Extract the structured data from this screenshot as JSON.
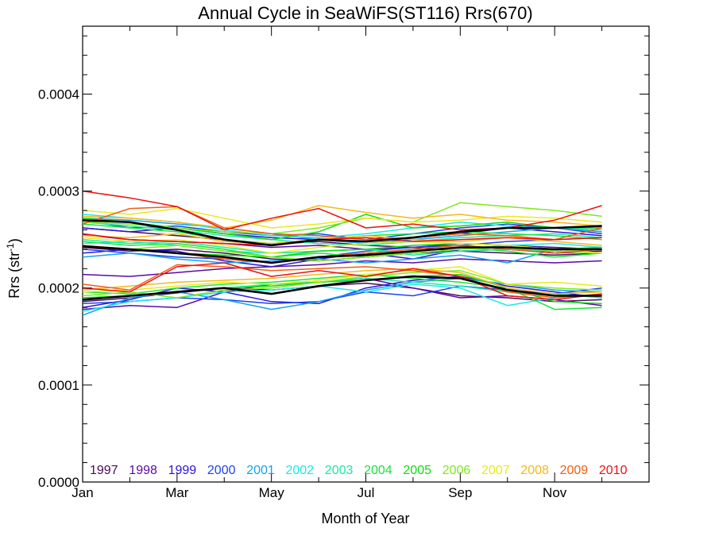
{
  "chart_data": {
    "type": "line",
    "title": "Annual Cycle in SeaWiFS(ST116) Rrs(670)",
    "xlabel": "Month of Year",
    "ylabel_main": "Rrs (str",
    "ylabel_sup": "-1",
    "ylabel_close": ")",
    "xlim": [
      1,
      13
    ],
    "ylim": [
      0,
      0.00047
    ],
    "x_ticks": [
      {
        "value": 1,
        "label": "Jan"
      },
      {
        "value": 3,
        "label": "Mar"
      },
      {
        "value": 5,
        "label": "May"
      },
      {
        "value": 7,
        "label": "Jul"
      },
      {
        "value": 9,
        "label": "Sep"
      },
      {
        "value": 11,
        "label": "Nov"
      }
    ],
    "y_ticks": [
      {
        "value": 0,
        "label": "0.0000"
      },
      {
        "value": 0.0001,
        "label": "0.0001"
      },
      {
        "value": 0.0002,
        "label": "0.0002"
      },
      {
        "value": 0.0003,
        "label": "0.0003"
      },
      {
        "value": 0.0004,
        "label": "0.0004"
      }
    ],
    "grid": false,
    "legend_position": "bottom",
    "x": [
      1,
      2,
      3,
      4,
      5,
      6,
      7,
      8,
      9,
      10,
      11,
      12
    ],
    "series": [
      {
        "name": "1997",
        "color": "#4b0a5e",
        "high": [
          0.000262,
          0.000258,
          0.000254,
          0.00025,
          0.000245,
          0.000248,
          0.000244,
          0.000242,
          0.000238,
          0.00024,
          0.000236,
          0.000238
        ],
        "mid": [
          0.000242,
          0.000238,
          0.00024,
          0.000236,
          0.00023,
          0.000228,
          0.000232,
          0.000236,
          0.000238,
          0.000236,
          0.000234,
          0.000236
        ],
        "low": [
          0.000186,
          0.00019,
          0.000195,
          0.0002,
          0.000198,
          0.000202,
          0.000205,
          0.0002,
          0.000192,
          0.00019,
          0.000186,
          0.000188
        ]
      },
      {
        "name": "1998",
        "color": "#5a0aa8",
        "high": [
          0.000255,
          0.00025,
          0.000248,
          0.000246,
          0.000242,
          0.000244,
          0.00024,
          0.000242,
          0.000246,
          0.000244,
          0.000242,
          0.00024
        ],
        "mid": [
          0.000214,
          0.000212,
          0.000216,
          0.00022,
          0.000222,
          0.000224,
          0.000228,
          0.000226,
          0.00023,
          0.000228,
          0.000226,
          0.000228
        ],
        "low": [
          0.000178,
          0.000182,
          0.00018,
          0.000196,
          0.000204,
          0.000206,
          0.00021,
          0.0002,
          0.00019,
          0.000192,
          0.000188,
          0.000182
        ]
      },
      {
        "name": "1999",
        "color": "#2a14d8",
        "high": [
          0.000262,
          0.000258,
          0.000262,
          0.000256,
          0.000252,
          0.00025,
          0.000248,
          0.000252,
          0.000256,
          0.000262,
          0.000258,
          0.000254
        ],
        "mid": [
          0.000236,
          0.00024,
          0.000238,
          0.000228,
          0.000222,
          0.00023,
          0.000236,
          0.00023,
          0.00024,
          0.000244,
          0.000236,
          0.00024
        ],
        "low": [
          0.00018,
          0.000188,
          0.0002,
          0.000196,
          0.000186,
          0.000184,
          0.0002,
          0.000208,
          0.000212,
          0.000202,
          0.000196,
          0.00019
        ]
      },
      {
        "name": "2000",
        "color": "#1c44ee",
        "high": [
          0.00027,
          0.000262,
          0.000264,
          0.000258,
          0.000254,
          0.000256,
          0.00025,
          0.000256,
          0.000262,
          0.000266,
          0.000262,
          0.000256
        ],
        "mid": [
          0.00024,
          0.000236,
          0.000232,
          0.00023,
          0.000226,
          0.000232,
          0.000238,
          0.000242,
          0.000244,
          0.000248,
          0.00025,
          0.000252
        ],
        "low": [
          0.000184,
          0.000186,
          0.00019,
          0.000188,
          0.000184,
          0.000186,
          0.000196,
          0.000192,
          0.000202,
          0.000198,
          0.000194,
          0.0002
        ]
      },
      {
        "name": "2001",
        "color": "#13a2f0",
        "high": [
          0.000272,
          0.00027,
          0.000266,
          0.000262,
          0.000256,
          0.00025,
          0.000246,
          0.00025,
          0.000254,
          0.000258,
          0.000262,
          0.000258
        ],
        "mid": [
          0.000232,
          0.000236,
          0.00023,
          0.000226,
          0.000228,
          0.00023,
          0.000226,
          0.00023,
          0.000234,
          0.000226,
          0.00024,
          0.000236
        ],
        "low": [
          0.000172,
          0.00019,
          0.000196,
          0.000188,
          0.000178,
          0.000186,
          0.000198,
          0.000206,
          0.00021,
          0.000204,
          0.000198,
          0.000196
        ]
      },
      {
        "name": "2002",
        "color": "#1ae8ec",
        "high": [
          0.000276,
          0.000272,
          0.000268,
          0.00026,
          0.000254,
          0.000252,
          0.000256,
          0.000262,
          0.000268,
          0.000264,
          0.000262,
          0.00026
        ],
        "mid": [
          0.000246,
          0.000248,
          0.000244,
          0.000238,
          0.000236,
          0.000238,
          0.00024,
          0.000236,
          0.00024,
          0.000244,
          0.000246,
          0.000242
        ],
        "low": [
          0.000176,
          0.000186,
          0.00019,
          0.000196,
          0.000198,
          0.000202,
          0.000196,
          0.000204,
          0.0002,
          0.000182,
          0.00019,
          0.000194
        ]
      },
      {
        "name": "2003",
        "color": "#1ae8a6",
        "high": [
          0.000268,
          0.000264,
          0.00026,
          0.000254,
          0.00025,
          0.000246,
          0.000244,
          0.000248,
          0.000252,
          0.000254,
          0.000256,
          0.000252
        ],
        "mid": [
          0.00025,
          0.000246,
          0.000248,
          0.000242,
          0.000236,
          0.000238,
          0.00024,
          0.000234,
          0.000238,
          0.00024,
          0.000238,
          0.000236
        ],
        "low": [
          0.00019,
          0.000192,
          0.000196,
          0.0002,
          0.000204,
          0.000206,
          0.00021,
          0.000206,
          0.000202,
          0.000196,
          0.000194,
          0.00019
        ]
      },
      {
        "name": "2004",
        "color": "#18e43c",
        "high": [
          0.000266,
          0.000262,
          0.000258,
          0.00025,
          0.000246,
          0.00025,
          0.000254,
          0.000256,
          0.000258,
          0.000256,
          0.000254,
          0.00025
        ],
        "mid": [
          0.000248,
          0.000244,
          0.000246,
          0.00024,
          0.000232,
          0.000236,
          0.000232,
          0.000238,
          0.000242,
          0.000238,
          0.000232,
          0.000236
        ],
        "low": [
          0.000196,
          0.000194,
          0.0002,
          0.000204,
          0.000206,
          0.00021,
          0.000214,
          0.00021,
          0.000206,
          0.0002,
          0.000178,
          0.00018
        ]
      },
      {
        "name": "2005",
        "color": "#10dc10",
        "high": [
          0.000272,
          0.000268,
          0.000262,
          0.000256,
          0.00025,
          0.000258,
          0.000276,
          0.000262,
          0.000264,
          0.000268,
          0.000262,
          0.000262
        ],
        "mid": [
          0.000244,
          0.00024,
          0.000236,
          0.000234,
          0.000232,
          0.000238,
          0.00024,
          0.000244,
          0.000246,
          0.000244,
          0.00024,
          0.000242
        ],
        "low": [
          0.00019,
          0.000192,
          0.000196,
          0.0002,
          0.000202,
          0.000206,
          0.000208,
          0.000212,
          0.000214,
          0.0002,
          0.000186,
          0.000184
        ]
      },
      {
        "name": "2006",
        "color": "#7fe81c",
        "high": [
          0.000268,
          0.000266,
          0.000262,
          0.000258,
          0.000256,
          0.000262,
          0.000272,
          0.000268,
          0.000288,
          0.000284,
          0.00028,
          0.000274
        ],
        "mid": [
          0.000244,
          0.00024,
          0.000244,
          0.000238,
          0.000232,
          0.000228,
          0.000232,
          0.000236,
          0.00024,
          0.000242,
          0.000238,
          0.000236
        ],
        "low": [
          0.000192,
          0.000196,
          0.00019,
          0.000198,
          0.0002,
          0.000206,
          0.000212,
          0.000216,
          0.000218,
          0.000204,
          0.0002,
          0.000198
        ]
      },
      {
        "name": "2007",
        "color": "#ece81c",
        "high": [
          0.00028,
          0.000276,
          0.000282,
          0.000272,
          0.000262,
          0.000266,
          0.000272,
          0.000268,
          0.00027,
          0.000274,
          0.000272,
          0.000268
        ],
        "mid": [
          0.000252,
          0.000248,
          0.00025,
          0.000244,
          0.000236,
          0.000242,
          0.000246,
          0.000248,
          0.000246,
          0.000244,
          0.00024,
          0.000236
        ],
        "low": [
          0.000196,
          0.000198,
          0.000202,
          0.000206,
          0.000204,
          0.000208,
          0.000214,
          0.000218,
          0.000222,
          0.000204,
          0.000206,
          0.000202
        ]
      },
      {
        "name": "2008",
        "color": "#f4b818",
        "high": [
          0.000274,
          0.000272,
          0.000268,
          0.000262,
          0.00027,
          0.000285,
          0.000278,
          0.000272,
          0.000276,
          0.00027,
          0.000268,
          0.000264
        ],
        "mid": [
          0.000254,
          0.000252,
          0.000256,
          0.000248,
          0.000246,
          0.00025,
          0.000254,
          0.00025,
          0.000248,
          0.000252,
          0.000248,
          0.000244
        ],
        "low": [
          0.000198,
          0.000202,
          0.000206,
          0.000208,
          0.00021,
          0.000214,
          0.000218,
          0.00022,
          0.000216,
          0.0002,
          0.000194,
          0.000196
        ]
      },
      {
        "name": "2009",
        "color": "#f45c10",
        "high": [
          0.000266,
          0.000282,
          0.000284,
          0.000262,
          0.000256,
          0.000254,
          0.00025,
          0.000252,
          0.000256,
          0.000254,
          0.00025,
          0.000262
        ],
        "mid": [
          0.000244,
          0.00024,
          0.000236,
          0.00023,
          0.000226,
          0.000232,
          0.000236,
          0.00024,
          0.000244,
          0.00024,
          0.000236,
          0.00024
        ],
        "low": [
          0.000204,
          0.000198,
          0.000224,
          0.000222,
          0.000218,
          0.00022,
          0.000222,
          0.000218,
          0.000212,
          0.000196,
          0.00019,
          0.000194
        ]
      },
      {
        "name": "2010",
        "color": "#ec1010",
        "high": [
          0.0003,
          0.000293,
          0.000284,
          0.00026,
          0.000272,
          0.000282,
          0.000262,
          0.000266,
          0.00026,
          0.000262,
          0.00027,
          0.000285
        ],
        "mid": [
          0.000256,
          0.00025,
          0.000248,
          0.000246,
          0.000244,
          0.00025,
          0.000252,
          0.000248,
          0.00025,
          0.000252,
          0.00025,
          0.000252
        ],
        "low": [
          0.0002,
          0.000196,
          0.000222,
          0.000226,
          0.000212,
          0.000218,
          0.000212,
          0.00022,
          0.000212,
          0.000192,
          0.000188,
          0.000194
        ]
      },
      {
        "name": "",
        "color": "#000000",
        "bold": true,
        "high": [
          0.00027,
          0.000268,
          0.00026,
          0.00025,
          0.000244,
          0.00025,
          0.000248,
          0.000252,
          0.000258,
          0.000262,
          0.000262,
          0.000264
        ],
        "mid": [
          0.000243,
          0.00024,
          0.000236,
          0.000232,
          0.000226,
          0.000232,
          0.000234,
          0.000238,
          0.000242,
          0.000242,
          0.00024,
          0.00024
        ],
        "low": [
          0.000188,
          0.000192,
          0.000196,
          0.0002,
          0.000194,
          0.000202,
          0.000208,
          0.000212,
          0.00021,
          0.000198,
          0.000192,
          0.000192
        ]
      }
    ]
  }
}
